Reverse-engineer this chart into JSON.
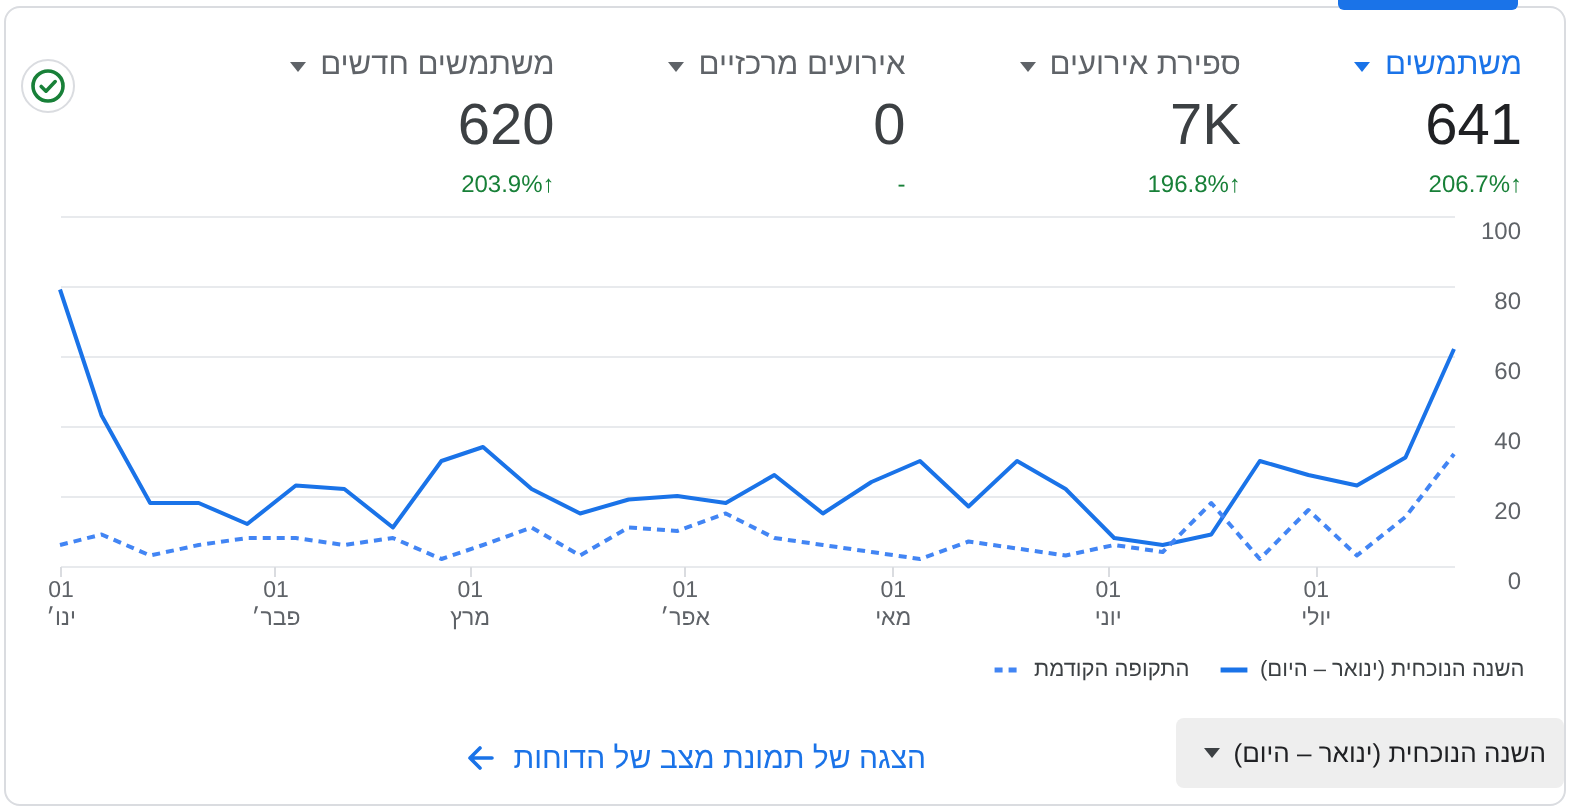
{
  "chart_data": [
    {
      "type": "other",
      "categories": [
        "משתמשים חדשים",
        "אירועים מרכזיים",
        "ספירת אירועים",
        "משתמשים"
      ],
      "value_labels": [
        "620",
        "0",
        "7K",
        "641"
      ],
      "colors": [
        "#5f6368",
        "#5f6368",
        "#5f6368",
        "#1a73e8"
      ],
      "annotations": [
        "203.9%↑",
        "-",
        "196.8%↑",
        "206.7%↑"
      ]
    },
    {
      "type": "line",
      "x": [
        "--01-01",
        "--01-07",
        "--01-14",
        "--01-21",
        "--01-28",
        "--02-04",
        "--02-11",
        "--02-18",
        "--02-25",
        "--03-03",
        "--03-10",
        "--03-17",
        "--03-24",
        "--03-31",
        "--04-07",
        "--04-14",
        "--04-21",
        "--04-28",
        "--05-05",
        "--05-12",
        "--05-19",
        "--05-26",
        "--06-02",
        "--06-09",
        "--06-16",
        "--06-23",
        "--06-30",
        "--07-07",
        "--07-14",
        "--07-21"
      ],
      "series": [
        {
          "name": "השנה הנוכחית (ינואר – היום)",
          "color": "#1a73e8",
          "line_style": "solid",
          "values": [
            79,
            43,
            18,
            18,
            12,
            23,
            22,
            11,
            30,
            34,
            22,
            15,
            19,
            20,
            18,
            26,
            15,
            24,
            30,
            17,
            30,
            22,
            8,
            6,
            9,
            30,
            26,
            23,
            31,
            62
          ]
        },
        {
          "name": "התקופה הקודמת",
          "color": "#4285f4",
          "line_style": "dashed",
          "values": [
            6,
            9,
            3,
            6,
            8,
            8,
            6,
            8,
            2,
            6,
            11,
            3,
            11,
            10,
            15,
            8,
            6,
            4,
            2,
            7,
            5,
            3,
            6,
            4,
            18,
            2,
            16,
            3,
            14,
            32
          ]
        }
      ],
      "xlim": [
        "--01-01",
        "--07-21"
      ],
      "xticks": [
        {
          "value": "--01-01",
          "label": "01\nינו׳"
        },
        {
          "value": "--02-01",
          "label": "01\nפבר׳"
        },
        {
          "value": "--03-01",
          "label": "01\nמרץ"
        },
        {
          "value": "--04-01",
          "label": "01\nאפר׳"
        },
        {
          "value": "--05-01",
          "label": "01\nמאי"
        },
        {
          "value": "--06-01",
          "label": "01\nיוני"
        },
        {
          "value": "--07-01",
          "label": "01\nיולי"
        }
      ],
      "ylim": [
        0,
        100
      ],
      "yticks": [
        0,
        20,
        40,
        60,
        80,
        100
      ],
      "grid": "y",
      "legend": "bottom right",
      "annotations": [
        "השנה הנוכחית (ינואר – היום)",
        "הצגה של תמונת מצב של הדוחות"
      ]
    }
  ]
}
